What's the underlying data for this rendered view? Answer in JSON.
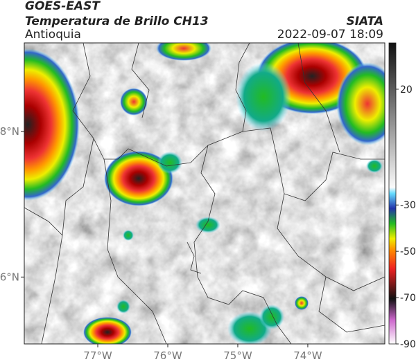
{
  "header": {
    "title": "GOES-EAST",
    "subtitle": "Temperatura de Brillo CH13",
    "source": "SIATA",
    "region": "Antioquia",
    "timestamp": "2022-09-07 18:09"
  },
  "map": {
    "lonlim": [
      -78.05,
      -72.9
    ],
    "latlim": [
      5.08,
      9.22
    ],
    "lonticks": [
      {
        "value": -77,
        "label": "77°W"
      },
      {
        "value": -76,
        "label": "76°W"
      },
      {
        "value": -75,
        "label": "75°W"
      },
      {
        "value": -74,
        "label": "74°W"
      }
    ],
    "latticks": [
      {
        "value": 8,
        "label": "8°N"
      },
      {
        "value": 6,
        "label": "6°N"
      }
    ]
  },
  "colorbar": {
    "lim": [
      -90,
      40
    ],
    "ticks": [
      20,
      -30,
      -50,
      -70,
      -90
    ]
  }
}
